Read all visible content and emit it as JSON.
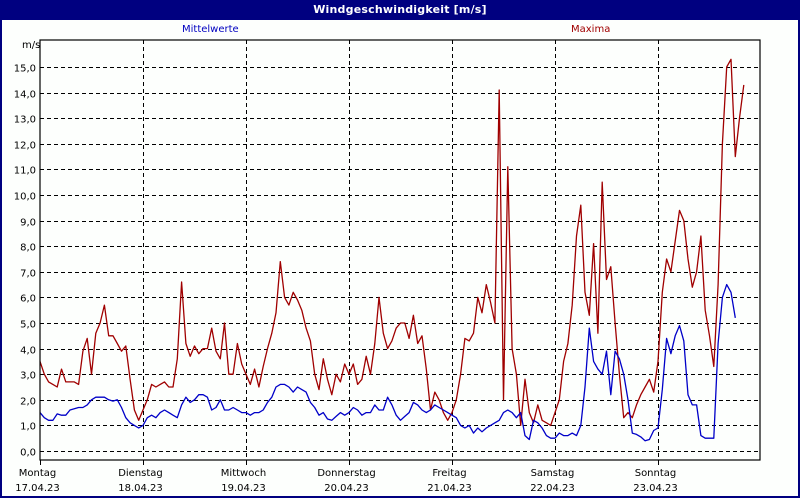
{
  "window": {
    "title": "Windgeschwindigkeit [m/s]"
  },
  "legend": {
    "mean_label": "Mittelwerte",
    "max_label": "Maxima"
  },
  "colors": {
    "titlebar": "#000080",
    "mean": "#0000c8",
    "max": "#a00000",
    "grid": "#000000"
  },
  "chart_data": {
    "type": "line",
    "title": "Windgeschwindigkeit [m/s]",
    "xlabel": "",
    "ylabel": "m/s",
    "ylim": [
      0,
      15
    ],
    "yticks": [
      "0,0",
      "1,0",
      "2,0",
      "3,0",
      "4,0",
      "5,0",
      "6,0",
      "7,0",
      "8,0",
      "9,0",
      "10,0",
      "11,0",
      "12,0",
      "13,0",
      "14,0",
      "15,0"
    ],
    "grid": true,
    "legend_position": "top",
    "x_ticks": [
      {
        "day": "Montag",
        "date": "17.04.23"
      },
      {
        "day": "Dienstag",
        "date": "18.04.23"
      },
      {
        "day": "Mittwoch",
        "date": "19.04.23"
      },
      {
        "day": "Donnerstag",
        "date": "20.04.23"
      },
      {
        "day": "Freitag",
        "date": "21.04.23"
      },
      {
        "day": "Samstag",
        "date": "22.04.23"
      },
      {
        "day": "Sonntag",
        "date": "23.04.23"
      }
    ],
    "samples_per_day": 24,
    "series": [
      {
        "name": "Maxima",
        "color": "#a00000",
        "values": [
          3.5,
          3.0,
          2.7,
          2.6,
          2.5,
          3.2,
          2.7,
          2.7,
          2.7,
          2.6,
          3.9,
          4.4,
          3.0,
          4.6,
          5.0,
          5.7,
          4.5,
          4.5,
          4.2,
          3.9,
          4.1,
          2.8,
          1.6,
          1.2,
          1.6,
          2.0,
          2.6,
          2.5,
          2.6,
          2.7,
          2.5,
          2.5,
          3.6,
          6.6,
          4.2,
          3.7,
          4.1,
          3.8,
          4.0,
          4.0,
          4.8,
          3.9,
          3.6,
          5.0,
          3.0,
          3.0,
          4.2,
          3.4,
          3.0,
          2.6,
          3.2,
          2.5,
          3.3,
          4.0,
          4.6,
          5.4,
          7.4,
          6.0,
          5.7,
          6.2,
          5.9,
          5.5,
          4.8,
          4.3,
          3.0,
          2.4,
          3.6,
          2.8,
          2.2,
          3.0,
          2.7,
          3.4,
          3.0,
          3.4,
          2.6,
          2.8,
          3.7,
          3.0,
          4.2,
          6.0,
          4.6,
          4.0,
          4.3,
          4.8,
          5.0,
          5.0,
          4.4,
          5.3,
          4.2,
          4.5,
          3.2,
          1.6,
          2.3,
          2.0,
          1.5,
          1.2,
          1.5,
          2.0,
          3.0,
          4.4,
          4.3,
          4.6,
          6.0,
          5.4,
          6.5,
          5.8,
          5.0,
          14.1,
          2.0,
          11.1,
          4.0,
          3.0,
          1.0,
          2.8,
          1.5,
          1.1,
          1.8,
          1.2,
          1.1,
          1.0,
          1.5,
          2.0,
          3.5,
          4.2,
          5.7,
          8.4,
          9.6,
          6.2,
          5.3,
          8.1,
          4.6,
          10.5,
          6.7,
          7.2,
          5.0,
          3.0,
          1.3,
          1.5,
          1.3,
          1.8,
          2.2,
          2.5,
          2.8,
          2.3,
          3.5,
          6.2,
          7.5,
          7.0,
          8.2,
          9.4,
          9.0,
          7.5,
          6.4,
          7.0,
          8.4,
          5.5,
          4.5,
          3.3,
          6.5,
          12.0,
          15.0,
          15.3,
          11.5,
          13.0,
          14.3
        ]
      },
      {
        "name": "Mittelwerte",
        "color": "#0000c8",
        "values": [
          1.5,
          1.3,
          1.2,
          1.2,
          1.45,
          1.4,
          1.4,
          1.6,
          1.65,
          1.7,
          1.7,
          1.8,
          2.0,
          2.1,
          2.1,
          2.1,
          2.0,
          1.95,
          2.0,
          1.7,
          1.3,
          1.1,
          1.0,
          0.9,
          1.0,
          1.3,
          1.4,
          1.3,
          1.5,
          1.6,
          1.5,
          1.4,
          1.3,
          1.8,
          2.1,
          1.9,
          2.0,
          2.2,
          2.2,
          2.1,
          1.6,
          1.7,
          2.0,
          1.6,
          1.6,
          1.7,
          1.6,
          1.5,
          1.5,
          1.4,
          1.5,
          1.5,
          1.6,
          1.9,
          2.1,
          2.5,
          2.6,
          2.6,
          2.5,
          2.3,
          2.5,
          2.4,
          2.3,
          1.9,
          1.7,
          1.4,
          1.5,
          1.25,
          1.2,
          1.35,
          1.5,
          1.4,
          1.5,
          1.7,
          1.6,
          1.4,
          1.5,
          1.5,
          1.8,
          1.6,
          1.6,
          2.1,
          1.8,
          1.4,
          1.2,
          1.35,
          1.5,
          1.9,
          1.8,
          1.6,
          1.5,
          1.6,
          1.8,
          1.7,
          1.6,
          1.5,
          1.4,
          1.3,
          1.0,
          0.9,
          1.0,
          0.7,
          0.9,
          0.75,
          0.9,
          1.0,
          1.1,
          1.2,
          1.5,
          1.6,
          1.5,
          1.3,
          1.5,
          0.6,
          0.45,
          1.2,
          1.1,
          0.9,
          0.6,
          0.5,
          0.5,
          0.7,
          0.6,
          0.6,
          0.7,
          0.6,
          1.0,
          2.5,
          4.8,
          3.5,
          3.2,
          3.0,
          3.9,
          2.2,
          3.9,
          3.6,
          3.0,
          2.0,
          0.7,
          0.65,
          0.55,
          0.4,
          0.45,
          0.8,
          0.9,
          2.4,
          4.4,
          3.8,
          4.5,
          4.9,
          4.3,
          2.2,
          1.8,
          1.8,
          0.6,
          0.5,
          0.5,
          0.5,
          4.2,
          6.0,
          6.5,
          6.2,
          5.2
        ]
      }
    ]
  }
}
